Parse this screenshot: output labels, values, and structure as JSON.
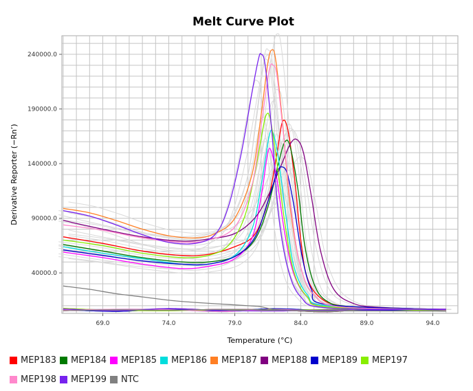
{
  "chart_data": {
    "type": "line",
    "title": "Melt Curve Plot",
    "xlabel": "Temperature (°C)",
    "ylabel": "Derivative Reporter (−Rn’)",
    "xlim": [
      65.9,
      95.9
    ],
    "ylim": [
      3000,
      257000
    ],
    "xticks": [
      69.0,
      74.0,
      79.0,
      84.0,
      89.0,
      94.0
    ],
    "xtick_labels": [
      "69.0",
      "74.0",
      "79.0",
      "84.0",
      "89.0",
      "94.0"
    ],
    "yticks": [
      40000,
      90000,
      140000,
      190000,
      240000
    ],
    "ytick_labels": [
      "40000.0",
      "90000.0",
      "140000.0",
      "190000.0",
      "240000.0"
    ],
    "grid": true,
    "legend_position": "bottom",
    "series": [
      {
        "name": "MEP183",
        "color": "#ff0000",
        "points": [
          [
            66,
            73000
          ],
          [
            69,
            67000
          ],
          [
            72,
            60000
          ],
          [
            75,
            56000
          ],
          [
            77,
            57000
          ],
          [
            79,
            64000
          ],
          [
            80.5,
            75000
          ],
          [
            81.5,
            105000
          ],
          [
            82.2,
            150000
          ],
          [
            82.6,
            178000
          ],
          [
            83.0,
            172000
          ],
          [
            83.5,
            130000
          ],
          [
            84.0,
            70000
          ],
          [
            84.5,
            35000
          ],
          [
            85.5,
            17000
          ],
          [
            87,
            10000
          ],
          [
            90,
            7500
          ],
          [
            95,
            6500
          ]
        ]
      },
      {
        "name": "MEP184",
        "color": "#007a00",
        "points": [
          [
            66,
            66000
          ],
          [
            69,
            60000
          ],
          [
            72,
            54000
          ],
          [
            75,
            50000
          ],
          [
            77,
            50000
          ],
          [
            79,
            55000
          ],
          [
            80.5,
            70000
          ],
          [
            81.5,
            100000
          ],
          [
            82.3,
            140000
          ],
          [
            82.8,
            160000
          ],
          [
            83.2,
            155000
          ],
          [
            83.8,
            115000
          ],
          [
            84.3,
            65000
          ],
          [
            85,
            30000
          ],
          [
            86,
            14000
          ],
          [
            88,
            9000
          ],
          [
            95,
            6500
          ]
        ]
      },
      {
        "name": "MEP185",
        "color": "#ff00ff",
        "points": [
          [
            66,
            59000
          ],
          [
            69,
            54000
          ],
          [
            72,
            48000
          ],
          [
            75,
            44000
          ],
          [
            77,
            46000
          ],
          [
            79,
            53000
          ],
          [
            80.3,
            72000
          ],
          [
            81.0,
            110000
          ],
          [
            81.5,
            150000
          ],
          [
            81.8,
            150000
          ],
          [
            82.2,
            125000
          ],
          [
            82.8,
            75000
          ],
          [
            83.5,
            38000
          ],
          [
            84.5,
            18000
          ],
          [
            86,
            10000
          ],
          [
            95,
            6500
          ]
        ]
      },
      {
        "name": "MEP186",
        "color": "#00dddd",
        "points": [
          [
            66,
            64000
          ],
          [
            69,
            58000
          ],
          [
            72,
            53000
          ],
          [
            75,
            48000
          ],
          [
            77,
            48000
          ],
          [
            79,
            56000
          ],
          [
            80.3,
            80000
          ],
          [
            81.0,
            120000
          ],
          [
            81.6,
            165000
          ],
          [
            81.9,
            168000
          ],
          [
            82.3,
            145000
          ],
          [
            82.9,
            90000
          ],
          [
            83.5,
            45000
          ],
          [
            84.5,
            20000
          ],
          [
            86,
            10000
          ],
          [
            95,
            6500
          ]
        ]
      },
      {
        "name": "MEP187",
        "color": "#ff7f24",
        "points": [
          [
            66,
            99000
          ],
          [
            68,
            95000
          ],
          [
            70,
            88000
          ],
          [
            72,
            80000
          ],
          [
            74,
            74000
          ],
          [
            76,
            72000
          ],
          [
            77.5,
            76000
          ],
          [
            79,
            90000
          ],
          [
            80.3,
            130000
          ],
          [
            81.0,
            185000
          ],
          [
            81.5,
            232000
          ],
          [
            81.8,
            244000
          ],
          [
            82.1,
            235000
          ],
          [
            82.6,
            180000
          ],
          [
            83.2,
            100000
          ],
          [
            84,
            45000
          ],
          [
            85,
            20000
          ],
          [
            87,
            9000
          ],
          [
            95,
            6500
          ]
        ]
      },
      {
        "name": "MEP188",
        "color": "#800080",
        "points": [
          [
            66,
            88000
          ],
          [
            69,
            80000
          ],
          [
            72,
            73000
          ],
          [
            75,
            69000
          ],
          [
            77,
            71000
          ],
          [
            79,
            76000
          ],
          [
            80.5,
            90000
          ],
          [
            81.5,
            110000
          ],
          [
            82.5,
            138000
          ],
          [
            83.2,
            158000
          ],
          [
            83.7,
            162000
          ],
          [
            84.2,
            150000
          ],
          [
            84.8,
            110000
          ],
          [
            85.5,
            60000
          ],
          [
            86.5,
            25000
          ],
          [
            88,
            12000
          ],
          [
            90,
            8500
          ],
          [
            95,
            6500
          ]
        ]
      },
      {
        "name": "MEP189",
        "color": "#0000cc",
        "points": [
          [
            66,
            61000
          ],
          [
            69,
            56000
          ],
          [
            72,
            51000
          ],
          [
            75,
            48000
          ],
          [
            77,
            48000
          ],
          [
            79,
            55000
          ],
          [
            80.5,
            72000
          ],
          [
            81.5,
            105000
          ],
          [
            82.2,
            132000
          ],
          [
            82.6,
            137000
          ],
          [
            83.0,
            130000
          ],
          [
            83.5,
            100000
          ],
          [
            84.1,
            55000
          ],
          [
            84.8,
            25000
          ],
          [
            86,
            11000
          ],
          [
            95,
            6500
          ]
        ]
      },
      {
        "name": "MEP197",
        "color": "#88ee00",
        "points": [
          [
            66,
            70000
          ],
          [
            69,
            65000
          ],
          [
            72,
            58000
          ],
          [
            75,
            54000
          ],
          [
            77,
            56000
          ],
          [
            78.5,
            65000
          ],
          [
            79.7,
            90000
          ],
          [
            80.5,
            130000
          ],
          [
            81.1,
            170000
          ],
          [
            81.4,
            185000
          ],
          [
            81.7,
            180000
          ],
          [
            82.2,
            140000
          ],
          [
            82.8,
            85000
          ],
          [
            83.5,
            40000
          ],
          [
            84.5,
            18000
          ],
          [
            86,
            9000
          ],
          [
            95,
            6500
          ]
        ]
      },
      {
        "name": "MEP198",
        "color": "#ff88cc",
        "points": [
          [
            66,
            84000
          ],
          [
            69,
            79000
          ],
          [
            72,
            72000
          ],
          [
            75,
            68000
          ],
          [
            77,
            70000
          ],
          [
            79,
            82000
          ],
          [
            80.3,
            120000
          ],
          [
            81.0,
            175000
          ],
          [
            81.6,
            225000
          ],
          [
            81.9,
            230000
          ],
          [
            82.2,
            220000
          ],
          [
            82.7,
            165000
          ],
          [
            83.3,
            95000
          ],
          [
            84,
            45000
          ],
          [
            85,
            20000
          ],
          [
            87,
            9000
          ],
          [
            95,
            6500
          ]
        ]
      },
      {
        "name": "MEP199",
        "color": "#7722ee",
        "points": [
          [
            66,
            97000
          ],
          [
            68,
            92000
          ],
          [
            70,
            84000
          ],
          [
            72,
            75000
          ],
          [
            74,
            68000
          ],
          [
            76,
            67000
          ],
          [
            77.5,
            75000
          ],
          [
            78.5,
            100000
          ],
          [
            79.5,
            150000
          ],
          [
            80.3,
            205000
          ],
          [
            80.8,
            236000
          ],
          [
            81.0,
            240000
          ],
          [
            81.3,
            230000
          ],
          [
            81.8,
            170000
          ],
          [
            82.3,
            95000
          ],
          [
            83,
            45000
          ],
          [
            84,
            18000
          ],
          [
            86,
            8000
          ],
          [
            95,
            6500
          ]
        ]
      },
      {
        "name": "NTC",
        "color": "#808080",
        "points": [
          [
            66,
            28000
          ],
          [
            68,
            25000
          ],
          [
            70,
            21000
          ],
          [
            72,
            18000
          ],
          [
            74,
            15000
          ],
          [
            76,
            13000
          ],
          [
            78,
            11500
          ],
          [
            80,
            10000
          ],
          [
            81,
            9000
          ],
          [
            82,
            6500
          ],
          [
            84,
            5500
          ],
          [
            88,
            5200
          ],
          [
            95,
            5000
          ]
        ]
      }
    ]
  }
}
